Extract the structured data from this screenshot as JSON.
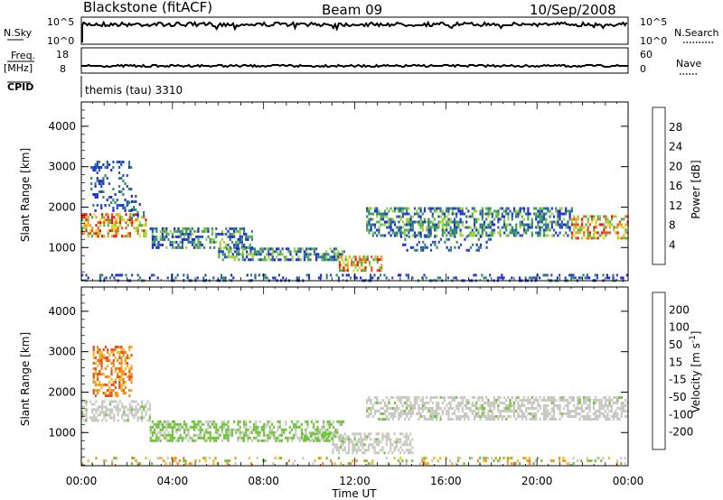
{
  "header": {
    "station": "Blackstone (fitACF)",
    "beam": "Beam 09",
    "date": "10/Sep/2008"
  },
  "summary_panels": {
    "nsky": {
      "label": "N.Sky",
      "right_label": "N.Search",
      "left_ticks": [
        "10^5",
        "10^0"
      ],
      "right_ticks": [
        "10^5",
        "10^0"
      ]
    },
    "freq": {
      "label_line1": "Freq.",
      "label_line2": "[MHz]",
      "left_ticks": [
        "18",
        "8"
      ],
      "right_label": "Nave",
      "right_ticks": [
        "60",
        "0"
      ]
    },
    "cpid": {
      "label": "CPID",
      "text": "themis (tau) 3310"
    }
  },
  "colors": {
    "power": [
      "#1f2dd6",
      "#2654b8",
      "#2f8a6e",
      "#4bb04a",
      "#9ed13c",
      "#f2d41a",
      "#f29a1a",
      "#f0501a",
      "#e01818"
    ],
    "velocity": [
      "#1f2dd6",
      "#2a5aa8",
      "#2f8a5a",
      "#6fc23a",
      "#c8c8c0",
      "#f2b82a",
      "#f08a1a",
      "#e8501a",
      "#e01818"
    ]
  },
  "chart_data": [
    {
      "type": "heatmap",
      "title": "Power",
      "xlabel": "Time UT",
      "ylabel": "Slant Range [km]",
      "x_ticks": [
        "00:00",
        "04:00",
        "08:00",
        "12:00",
        "16:00",
        "20:00",
        "00:00"
      ],
      "xlim": [
        0,
        24
      ],
      "ylim": [
        180,
        4600
      ],
      "y_ticks": [
        1000,
        2000,
        3000,
        4000
      ],
      "colorbar": {
        "label": "Power [dB]",
        "range": [
          0,
          32
        ],
        "ticks": [
          4,
          8,
          12,
          16,
          20,
          24,
          28
        ]
      },
      "regions": [
        {
          "t": [
            0.0,
            2.8
          ],
          "r": [
            1250,
            1850
          ],
          "level": "high"
        },
        {
          "t": [
            0.4,
            2.2
          ],
          "r": [
            1900,
            3150
          ],
          "level": "low"
        },
        {
          "t": [
            2.0,
            2.7
          ],
          "r": [
            1700,
            2300
          ],
          "level": "low"
        },
        {
          "t": [
            3.0,
            7.5
          ],
          "r": [
            1000,
            1500
          ],
          "level": "mid"
        },
        {
          "t": [
            6.0,
            11.5
          ],
          "r": [
            700,
            1000
          ],
          "level": "mid"
        },
        {
          "t": [
            11.3,
            13.2
          ],
          "r": [
            450,
            800
          ],
          "level": "high"
        },
        {
          "t": [
            12.5,
            21.5
          ],
          "r": [
            1300,
            2000
          ],
          "level": "mid"
        },
        {
          "t": [
            14.0,
            18.0
          ],
          "r": [
            900,
            1300
          ],
          "level": "low"
        },
        {
          "t": [
            21.5,
            24.0
          ],
          "r": [
            1250,
            1800
          ],
          "level": "high"
        },
        {
          "t": [
            0.0,
            24.0
          ],
          "r": [
            200,
            350
          ],
          "level": "low"
        }
      ]
    },
    {
      "type": "heatmap",
      "title": "Velocity",
      "xlabel": "Time UT",
      "ylabel": "Slant Range [km]",
      "x_ticks": [
        "00:00",
        "04:00",
        "08:00",
        "12:00",
        "16:00",
        "20:00",
        "00:00"
      ],
      "xlim": [
        0,
        24
      ],
      "ylim": [
        180,
        4600
      ],
      "y_ticks": [
        1000,
        2000,
        3000,
        4000
      ],
      "colorbar": {
        "label": "Velocity [m s^-1]",
        "ticks": [
          "200",
          "100",
          "50",
          "15",
          "-15",
          "-50",
          "-100",
          "-200"
        ]
      },
      "regions": [
        {
          "t": [
            0.0,
            3.0
          ],
          "r": [
            1300,
            1800
          ],
          "level": "ground"
        },
        {
          "t": [
            0.5,
            2.2
          ],
          "r": [
            1900,
            3150
          ],
          "level": "neg"
        },
        {
          "t": [
            3.0,
            11.5
          ],
          "r": [
            800,
            1300
          ],
          "level": "pos"
        },
        {
          "t": [
            9.5,
            11.0
          ],
          "r": [
            800,
            1000
          ],
          "level": "pos"
        },
        {
          "t": [
            11.0,
            14.5
          ],
          "r": [
            500,
            1000
          ],
          "level": "ground"
        },
        {
          "t": [
            12.5,
            24.0
          ],
          "r": [
            1300,
            1900
          ],
          "level": "ground"
        },
        {
          "t": [
            0.0,
            24.0
          ],
          "r": [
            200,
            400
          ],
          "level": "mixed"
        }
      ]
    }
  ]
}
